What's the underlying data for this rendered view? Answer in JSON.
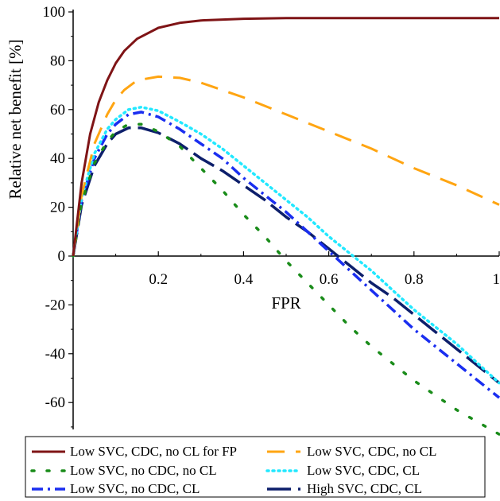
{
  "chart_data": {
    "type": "line",
    "title": "",
    "xlabel": "FPR",
    "ylabel": "Relative net benefit [%]",
    "xlim": [
      0,
      1
    ],
    "ylim": [
      -72,
      100
    ],
    "xticks": [
      "0.2",
      "0.4",
      "0.6",
      "0.8",
      "1"
    ],
    "yticks": [
      "100",
      "80",
      "60",
      "40",
      "20",
      "0",
      "-20",
      "-40",
      "-60"
    ],
    "grid": false,
    "legend_position": "bottom",
    "series": [
      {
        "name": "Low SVC, CDC, no CL for FP",
        "color": "#7f1416",
        "style": "solid",
        "x": [
          0,
          0.02,
          0.04,
          0.06,
          0.08,
          0.1,
          0.12,
          0.15,
          0.2,
          0.25,
          0.3,
          0.4,
          0.5,
          0.6,
          0.8,
          1.0
        ],
        "y": [
          0,
          30,
          50,
          63,
          72,
          79,
          84,
          89,
          93.5,
          95.5,
          96.5,
          97.2,
          97.5,
          97.5,
          97.5,
          97.5
        ]
      },
      {
        "name": "Low SVC, CDC, no CL",
        "color": "#ffa512",
        "style": "dash",
        "x": [
          0,
          0.02,
          0.05,
          0.08,
          0.1,
          0.12,
          0.15,
          0.2,
          0.25,
          0.3,
          0.4,
          0.5,
          0.6,
          0.7,
          0.8,
          0.9,
          1.0
        ],
        "y": [
          0,
          25,
          46,
          58,
          64,
          68,
          72,
          73.5,
          73,
          71,
          65,
          58,
          51,
          44,
          36,
          29,
          21
        ]
      },
      {
        "name": "Low SVC, no CDC, no CL",
        "color": "#1a8c1a",
        "style": "dot",
        "x": [
          0,
          0.02,
          0.05,
          0.08,
          0.1,
          0.13,
          0.16,
          0.2,
          0.25,
          0.3,
          0.35,
          0.4,
          0.45,
          0.5,
          0.55,
          0.6,
          0.65,
          0.7,
          0.75,
          0.8,
          0.85,
          0.9,
          0.95,
          1.0
        ],
        "y": [
          0,
          22,
          38,
          47,
          51,
          54,
          54,
          51,
          45,
          36,
          27,
          17,
          8,
          -2,
          -11,
          -20,
          -29,
          -37,
          -44,
          -51,
          -57,
          -63,
          -68,
          -73
        ]
      },
      {
        "name": "Low SVC, CDC, CL",
        "color": "#22e8ff",
        "style": "dot",
        "x": [
          0,
          0.02,
          0.05,
          0.08,
          0.1,
          0.13,
          0.16,
          0.2,
          0.25,
          0.3,
          0.35,
          0.4,
          0.45,
          0.5,
          0.55,
          0.6,
          0.65,
          0.7,
          0.75,
          0.8,
          0.85,
          0.9,
          0.95,
          1.0
        ],
        "y": [
          0,
          24,
          42,
          52,
          56,
          60,
          61,
          59.5,
          55,
          50,
          44,
          37,
          30,
          23,
          16,
          8,
          1,
          -6,
          -14,
          -22,
          -29,
          -36,
          -44,
          -52
        ]
      },
      {
        "name": "Low SVC, no CDC, CL",
        "color": "#1a2ef0",
        "style": "dashdot",
        "x": [
          0,
          0.02,
          0.05,
          0.08,
          0.1,
          0.13,
          0.16,
          0.2,
          0.25,
          0.3,
          0.35,
          0.4,
          0.45,
          0.5,
          0.55,
          0.6,
          0.65,
          0.7,
          0.75,
          0.8,
          0.85,
          0.9,
          0.95,
          1.0
        ],
        "y": [
          0,
          23,
          40,
          50,
          54,
          58,
          59,
          57,
          52,
          46,
          40,
          32,
          25,
          18,
          10,
          2,
          -6,
          -14,
          -22,
          -30,
          -37,
          -44,
          -51,
          -58
        ]
      },
      {
        "name": "High SVC, CDC, CL",
        "color": "#0d1f6b",
        "style": "longdash",
        "x": [
          0,
          0.02,
          0.05,
          0.08,
          0.1,
          0.13,
          0.16,
          0.2,
          0.25,
          0.3,
          0.35,
          0.4,
          0.45,
          0.5,
          0.55,
          0.6,
          0.65,
          0.7,
          0.75,
          0.8,
          0.85,
          0.9,
          0.95,
          1.0
        ],
        "y": [
          0,
          21,
          37,
          46,
          50,
          52.5,
          52.5,
          50.5,
          46,
          40,
          35,
          29,
          23,
          16,
          10,
          3,
          -4,
          -11,
          -17,
          -24,
          -31,
          -38,
          -45,
          -52
        ]
      }
    ]
  }
}
